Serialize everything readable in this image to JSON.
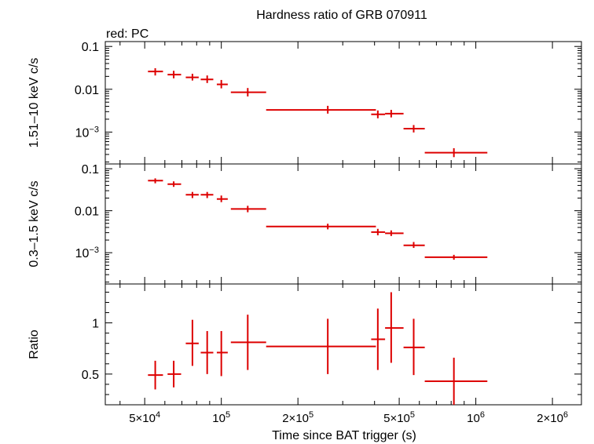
{
  "chart_data": {
    "type": "scatter",
    "title": "Hardness ratio of GRB 070911",
    "subtitle": "red: PC",
    "xlabel": "Time since BAT trigger (s)",
    "xscale": "log",
    "xlim": [
      35000,
      2600000
    ],
    "x_ticks": [
      {
        "value": 50000,
        "base": "5×10",
        "exp": "4"
      },
      {
        "value": 100000,
        "base": "10",
        "exp": "5"
      },
      {
        "value": 200000,
        "base": "2×10",
        "exp": "5"
      },
      {
        "value": 500000,
        "base": "5×10",
        "exp": "5"
      },
      {
        "value": 1000000,
        "base": "10",
        "exp": "6"
      },
      {
        "value": 2000000,
        "base": "2×10",
        "exp": "6"
      }
    ],
    "color": "#dd0000",
    "panels": [
      {
        "name": "hard",
        "ylabel": "1.51–10 keV c/s",
        "yscale": "log",
        "ylim": [
          0.00018,
          0.13
        ],
        "y_ticks": [
          {
            "value": 0.1,
            "label": "0.1"
          },
          {
            "value": 0.01,
            "label": "0.01"
          },
          {
            "value": 0.001,
            "base": "10",
            "exp": "−3"
          }
        ],
        "points": [
          {
            "x": 55000,
            "xlo": 51500,
            "xhi": 59000,
            "y": 0.026,
            "ylo": 0.021,
            "yhi": 0.031
          },
          {
            "x": 65000,
            "xlo": 61500,
            "xhi": 69500,
            "y": 0.022,
            "ylo": 0.018,
            "yhi": 0.027
          },
          {
            "x": 77000,
            "xlo": 72500,
            "xhi": 81500,
            "y": 0.019,
            "ylo": 0.016,
            "yhi": 0.023
          },
          {
            "x": 88000,
            "xlo": 83000,
            "xhi": 93000,
            "y": 0.017,
            "ylo": 0.014,
            "yhi": 0.021
          },
          {
            "x": 100000,
            "xlo": 96000,
            "xhi": 106000,
            "y": 0.013,
            "ylo": 0.0105,
            "yhi": 0.0165
          },
          {
            "x": 127000,
            "xlo": 109000,
            "xhi": 150000,
            "y": 0.0085,
            "ylo": 0.0068,
            "yhi": 0.0107
          },
          {
            "x": 262000,
            "xlo": 150000,
            "xhi": 405000,
            "y": 0.0033,
            "ylo": 0.0027,
            "yhi": 0.0041
          },
          {
            "x": 412000,
            "xlo": 388000,
            "xhi": 440000,
            "y": 0.0026,
            "ylo": 0.0021,
            "yhi": 0.0032
          },
          {
            "x": 465000,
            "xlo": 440000,
            "xhi": 520000,
            "y": 0.0027,
            "ylo": 0.0022,
            "yhi": 0.0033
          },
          {
            "x": 570000,
            "xlo": 520000,
            "xhi": 630000,
            "y": 0.0012,
            "ylo": 0.00098,
            "yhi": 0.00146
          },
          {
            "x": 820000,
            "xlo": 630000,
            "xhi": 1110000,
            "y": 0.00033,
            "ylo": 0.00026,
            "yhi": 0.00042
          }
        ]
      },
      {
        "name": "soft",
        "ylabel": "0.3–1.5 keV c/s",
        "yscale": "log",
        "ylim": [
          0.00018,
          0.13
        ],
        "y_ticks": [
          {
            "value": 0.1,
            "label": "0.1"
          },
          {
            "value": 0.01,
            "label": "0.01"
          },
          {
            "value": 0.001,
            "base": "10",
            "exp": "−3"
          }
        ],
        "points": [
          {
            "x": 55000,
            "xlo": 51500,
            "xhi": 59000,
            "y": 0.052,
            "ylo": 0.045,
            "yhi": 0.059
          },
          {
            "x": 65000,
            "xlo": 61500,
            "xhi": 69500,
            "y": 0.043,
            "ylo": 0.037,
            "yhi": 0.05
          },
          {
            "x": 77000,
            "xlo": 72500,
            "xhi": 81500,
            "y": 0.024,
            "ylo": 0.02,
            "yhi": 0.028
          },
          {
            "x": 88000,
            "xlo": 83000,
            "xhi": 93000,
            "y": 0.024,
            "ylo": 0.02,
            "yhi": 0.028
          },
          {
            "x": 100000,
            "xlo": 96000,
            "xhi": 106000,
            "y": 0.019,
            "ylo": 0.016,
            "yhi": 0.023
          },
          {
            "x": 127000,
            "xlo": 109000,
            "xhi": 150000,
            "y": 0.011,
            "ylo": 0.0092,
            "yhi": 0.0131
          },
          {
            "x": 262000,
            "xlo": 150000,
            "xhi": 405000,
            "y": 0.0042,
            "ylo": 0.0036,
            "yhi": 0.0049
          },
          {
            "x": 412000,
            "xlo": 388000,
            "xhi": 440000,
            "y": 0.0031,
            "ylo": 0.0026,
            "yhi": 0.0037
          },
          {
            "x": 465000,
            "xlo": 440000,
            "xhi": 520000,
            "y": 0.0029,
            "ylo": 0.0025,
            "yhi": 0.0034
          },
          {
            "x": 570000,
            "xlo": 520000,
            "xhi": 630000,
            "y": 0.0015,
            "ylo": 0.0013,
            "yhi": 0.0018
          },
          {
            "x": 820000,
            "xlo": 630000,
            "xhi": 1110000,
            "y": 0.00078,
            "ylo": 0.00068,
            "yhi": 0.00089
          }
        ]
      },
      {
        "name": "ratio",
        "ylabel": "Ratio",
        "yscale": "linear",
        "ylim": [
          0.2,
          1.38
        ],
        "y_ticks": [
          {
            "value": 0.5,
            "label": "0.5"
          },
          {
            "value": 1,
            "label": "1"
          }
        ],
        "points": [
          {
            "x": 55000,
            "xlo": 51500,
            "xhi": 59000,
            "y": 0.49,
            "ylo": 0.35,
            "yhi": 0.63
          },
          {
            "x": 65000,
            "xlo": 61500,
            "xhi": 69500,
            "y": 0.5,
            "ylo": 0.37,
            "yhi": 0.63
          },
          {
            "x": 77000,
            "xlo": 72500,
            "xhi": 81500,
            "y": 0.8,
            "ylo": 0.58,
            "yhi": 1.03
          },
          {
            "x": 88000,
            "xlo": 83000,
            "xhi": 93000,
            "y": 0.71,
            "ylo": 0.5,
            "yhi": 0.92
          },
          {
            "x": 100000,
            "xlo": 96000,
            "xhi": 106000,
            "y": 0.71,
            "ylo": 0.48,
            "yhi": 0.92
          },
          {
            "x": 127000,
            "xlo": 109000,
            "xhi": 150000,
            "y": 0.81,
            "ylo": 0.54,
            "yhi": 1.08
          },
          {
            "x": 262000,
            "xlo": 150000,
            "xhi": 405000,
            "y": 0.77,
            "ylo": 0.5,
            "yhi": 1.04
          },
          {
            "x": 412000,
            "xlo": 388000,
            "xhi": 440000,
            "y": 0.84,
            "ylo": 0.54,
            "yhi": 1.14
          },
          {
            "x": 465000,
            "xlo": 440000,
            "xhi": 520000,
            "y": 0.95,
            "ylo": 0.61,
            "yhi": 1.3
          },
          {
            "x": 570000,
            "xlo": 520000,
            "xhi": 630000,
            "y": 0.76,
            "ylo": 0.49,
            "yhi": 1.04
          },
          {
            "x": 820000,
            "xlo": 630000,
            "xhi": 1110000,
            "y": 0.43,
            "ylo": 0.2,
            "yhi": 0.66
          }
        ]
      }
    ]
  }
}
